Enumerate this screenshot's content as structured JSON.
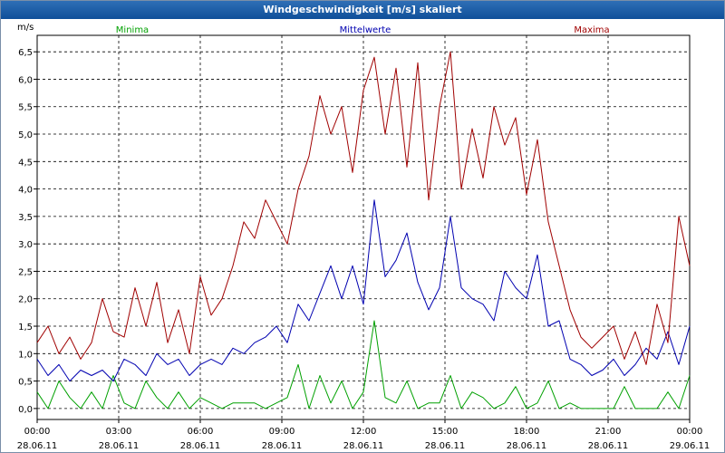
{
  "window": {
    "title": "Windgeschwindigkeit [m/s] skaliert"
  },
  "chart_data": {
    "type": "line",
    "title": "Windgeschwindigkeit [m/s] skaliert",
    "ylabel": "m/s",
    "xlabel": "",
    "ylim": [
      -0.2,
      6.8
    ],
    "xlim": [
      0,
      24
    ],
    "grid": true,
    "yticks": [
      {
        "value": 0.0,
        "label": "0,0"
      },
      {
        "value": 0.5,
        "label": "0,5"
      },
      {
        "value": 1.0,
        "label": "1,0"
      },
      {
        "value": 1.5,
        "label": "1,5"
      },
      {
        "value": 2.0,
        "label": "2,0"
      },
      {
        "value": 2.5,
        "label": "2,5"
      },
      {
        "value": 3.0,
        "label": "3,0"
      },
      {
        "value": 3.5,
        "label": "3,5"
      },
      {
        "value": 4.0,
        "label": "4,0"
      },
      {
        "value": 4.5,
        "label": "4,5"
      },
      {
        "value": 5.0,
        "label": "5,0"
      },
      {
        "value": 5.5,
        "label": "5,5"
      },
      {
        "value": 6.0,
        "label": "6,0"
      },
      {
        "value": 6.5,
        "label": "6,5"
      }
    ],
    "xticks": [
      {
        "value": 0,
        "time": "00:00",
        "date": "28.06.11"
      },
      {
        "value": 3,
        "time": "03:00",
        "date": "28.06.11"
      },
      {
        "value": 6,
        "time": "06:00",
        "date": "28.06.11"
      },
      {
        "value": 9,
        "time": "09:00",
        "date": "28.06.11"
      },
      {
        "value": 12,
        "time": "12:00",
        "date": "28.06.11"
      },
      {
        "value": 15,
        "time": "15:00",
        "date": "28.06.11"
      },
      {
        "value": 18,
        "time": "18:00",
        "date": "28.06.11"
      },
      {
        "value": 21,
        "time": "21:00",
        "date": "28.06.11"
      },
      {
        "value": 24,
        "time": "00:00",
        "date": "29.06.11"
      }
    ],
    "x": [
      0,
      0.4,
      0.8,
      1.2,
      1.6,
      2,
      2.4,
      2.8,
      3.2,
      3.6,
      4,
      4.4,
      4.8,
      5.2,
      5.6,
      6,
      6.4,
      6.8,
      7.2,
      7.6,
      8,
      8.4,
      8.8,
      9.2,
      9.6,
      10,
      10.4,
      10.8,
      11.2,
      11.6,
      12,
      12.4,
      12.8,
      13.2,
      13.6,
      14,
      14.4,
      14.8,
      15.2,
      15.6,
      16,
      16.4,
      16.8,
      17.2,
      17.6,
      18,
      18.4,
      18.8,
      19.2,
      19.6,
      20,
      20.4,
      20.8,
      21.2,
      21.6,
      22,
      22.4,
      22.8,
      23.2,
      23.6,
      24
    ],
    "series": [
      {
        "name": "Minima",
        "color": "#00a000",
        "values": [
          0.3,
          0.0,
          0.5,
          0.2,
          0.0,
          0.3,
          0.0,
          0.6,
          0.1,
          0.0,
          0.5,
          0.2,
          0.0,
          0.3,
          0.0,
          0.2,
          0.1,
          0.0,
          0.1,
          0.1,
          0.1,
          0.0,
          0.1,
          0.2,
          0.8,
          0.0,
          0.6,
          0.1,
          0.5,
          0.0,
          0.3,
          1.6,
          0.2,
          0.1,
          0.5,
          0.0,
          0.1,
          0.1,
          0.6,
          0.0,
          0.3,
          0.2,
          0.0,
          0.1,
          0.4,
          0.0,
          0.1,
          0.5,
          0.0,
          0.1,
          0.0,
          0.0,
          0.0,
          0.0,
          0.4,
          0.0,
          0.0,
          0.0,
          0.3,
          0.0,
          0.6
        ]
      },
      {
        "name": "Mittelwerte",
        "color": "#0000b0",
        "values": [
          0.9,
          0.6,
          0.8,
          0.5,
          0.7,
          0.6,
          0.7,
          0.5,
          0.9,
          0.8,
          0.6,
          1.0,
          0.8,
          0.9,
          0.6,
          0.8,
          0.9,
          0.8,
          1.1,
          1.0,
          1.2,
          1.3,
          1.5,
          1.2,
          1.9,
          1.6,
          2.1,
          2.6,
          2.0,
          2.6,
          1.9,
          3.8,
          2.4,
          2.7,
          3.2,
          2.3,
          1.8,
          2.2,
          3.5,
          2.2,
          2.0,
          1.9,
          1.6,
          2.5,
          2.2,
          2.0,
          2.8,
          1.5,
          1.6,
          0.9,
          0.8,
          0.6,
          0.7,
          0.9,
          0.6,
          0.8,
          1.1,
          0.9,
          1.4,
          0.8,
          1.5
        ]
      },
      {
        "name": "Maxima",
        "color": "#a00000",
        "values": [
          1.2,
          1.5,
          1.0,
          1.3,
          0.9,
          1.2,
          2.0,
          1.4,
          1.3,
          2.2,
          1.5,
          2.3,
          1.2,
          1.8,
          1.0,
          2.4,
          1.7,
          2.0,
          2.6,
          3.4,
          3.1,
          3.8,
          3.4,
          3.0,
          4.0,
          4.6,
          5.7,
          5.0,
          5.5,
          4.3,
          5.8,
          6.4,
          5.0,
          6.2,
          4.4,
          6.3,
          3.8,
          5.5,
          6.5,
          4.0,
          5.1,
          4.2,
          5.5,
          4.8,
          5.3,
          3.9,
          4.9,
          3.4,
          2.6,
          1.8,
          1.3,
          1.1,
          1.3,
          1.5,
          0.9,
          1.4,
          0.8,
          1.9,
          1.2,
          3.5,
          2.6
        ]
      }
    ]
  }
}
